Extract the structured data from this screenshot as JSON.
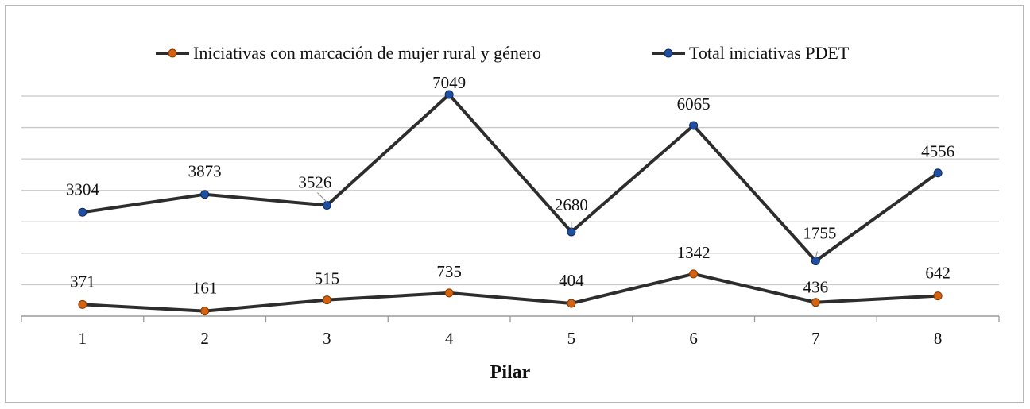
{
  "chart_data": {
    "type": "line",
    "x": [
      "1",
      "2",
      "3",
      "4",
      "5",
      "6",
      "7",
      "8"
    ],
    "xlabel": "Pilar",
    "ylabel": "",
    "ylim": [
      0,
      7000
    ],
    "grid": true,
    "legend_position": "top",
    "series": [
      {
        "name": "Iniciativas con marcación de mujer rural y género",
        "values": [
          371,
          161,
          515,
          735,
          404,
          1342,
          436,
          642
        ],
        "marker_color": "#d4620f",
        "line_color": "#2d2d2d"
      },
      {
        "name": "Total iniciativas PDET",
        "values": [
          3304,
          3873,
          3526,
          7049,
          2680,
          6065,
          1755,
          4556
        ],
        "marker_color": "#1f4fa0",
        "line_color": "#2d2d2d"
      }
    ]
  }
}
